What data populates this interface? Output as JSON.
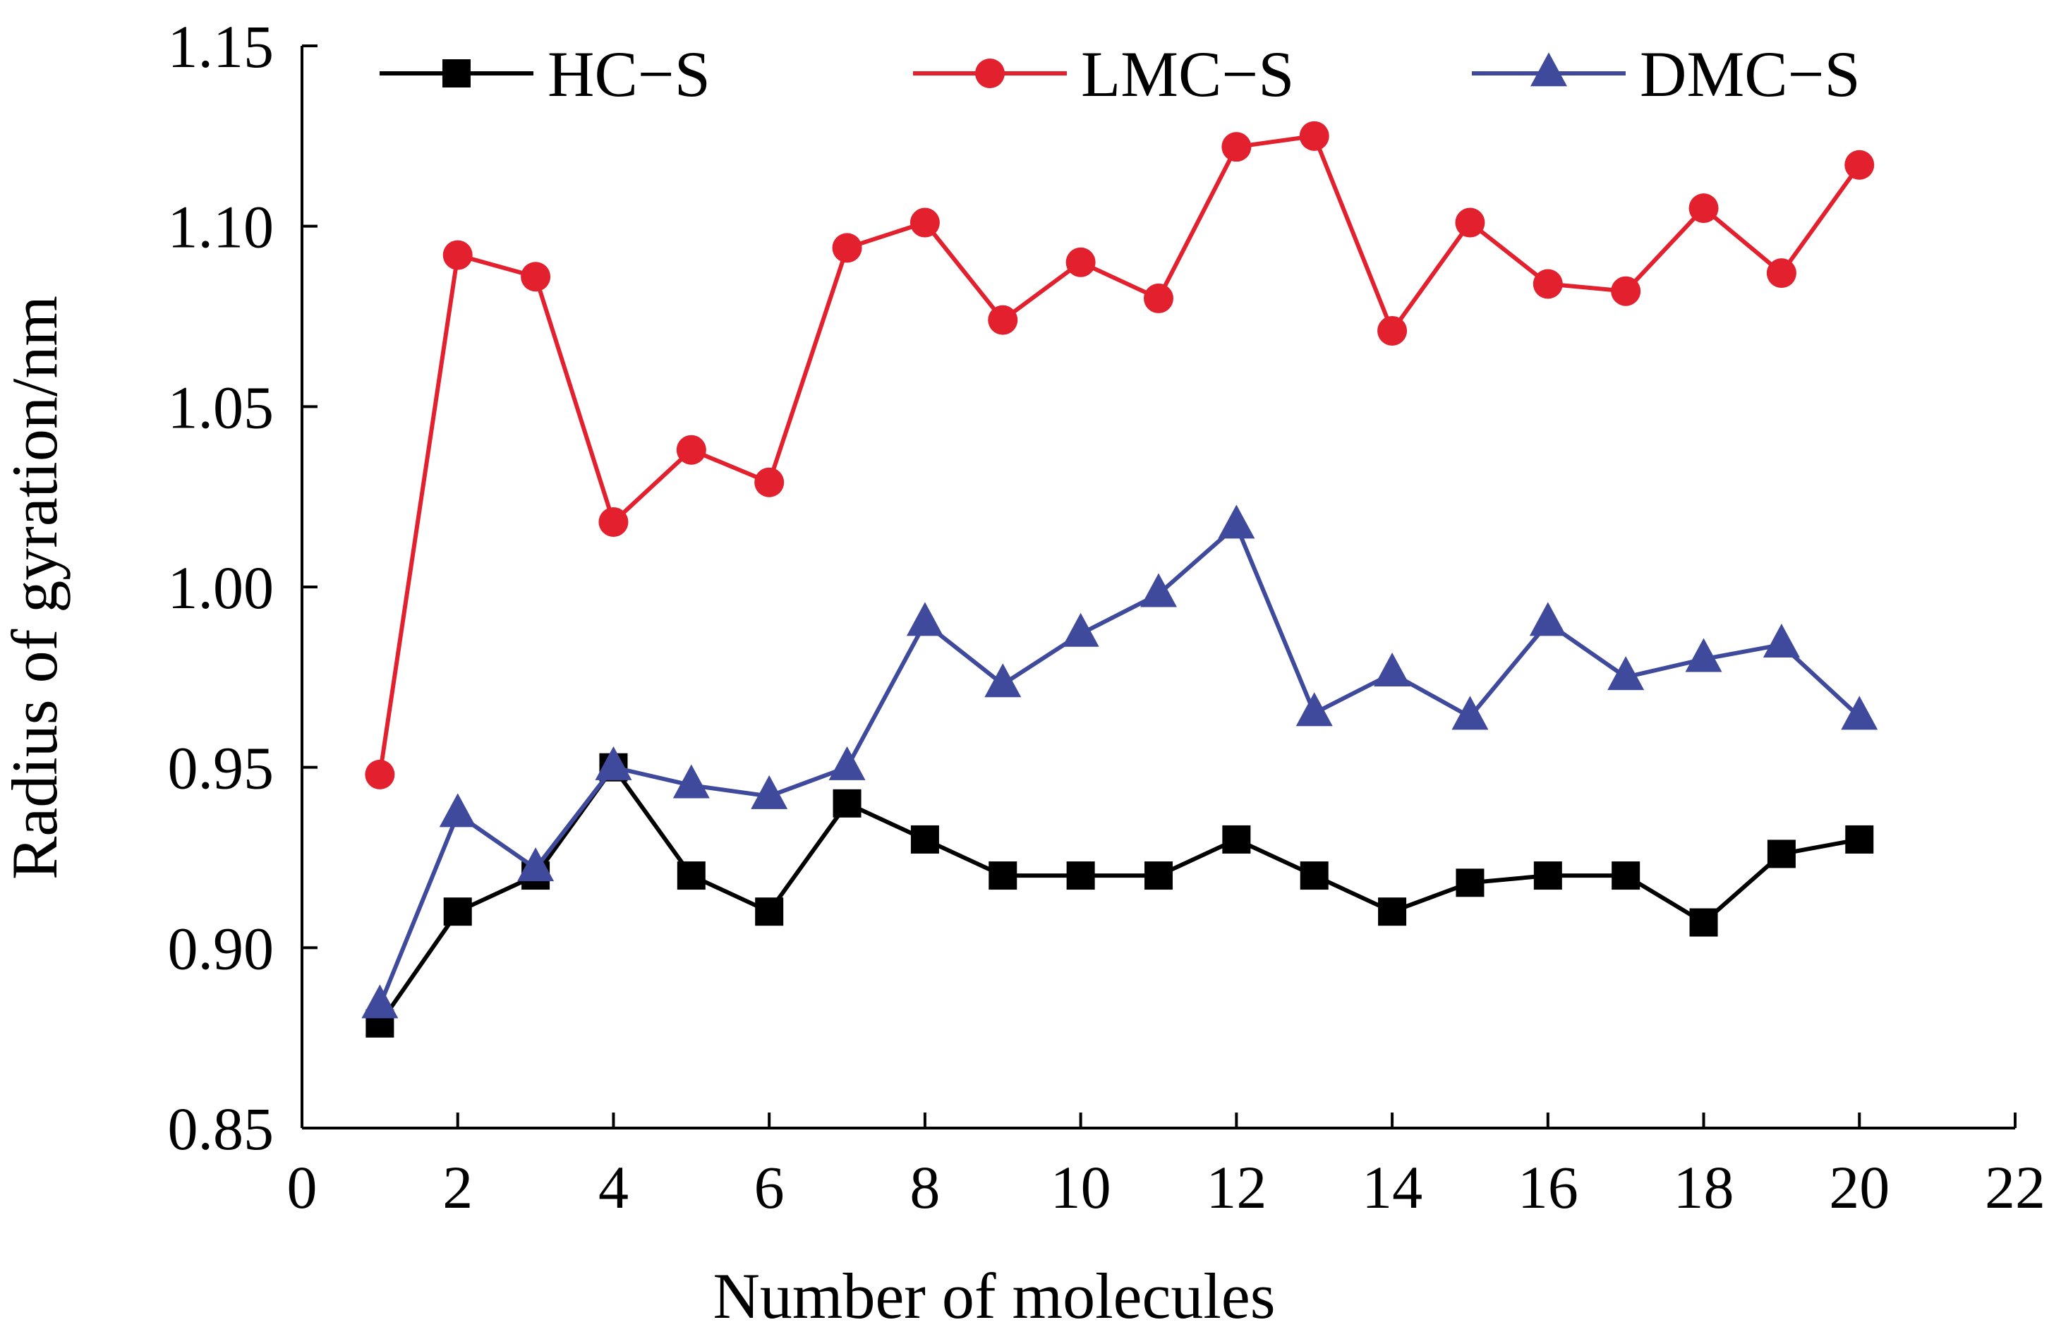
{
  "chart_data": {
    "type": "line",
    "title": "",
    "xlabel": "Number of molecules",
    "ylabel": "Radius of gyration/nm",
    "xlim": [
      0,
      22
    ],
    "ylim": [
      0.85,
      1.15
    ],
    "xticks": [
      "0",
      "2",
      "4",
      "6",
      "8",
      "10",
      "12",
      "14",
      "16",
      "18",
      "20",
      "22"
    ],
    "yticks": [
      "0.85",
      "0.90",
      "0.95",
      "1.00",
      "1.05",
      "1.10",
      "1.15"
    ],
    "grid": false,
    "legend_position": "top",
    "x": [
      1,
      2,
      3,
      4,
      5,
      6,
      7,
      8,
      9,
      10,
      11,
      12,
      13,
      14,
      15,
      16,
      17,
      18,
      19,
      20
    ],
    "series": [
      {
        "name": "HC−S",
        "color": "#000000",
        "marker": "square",
        "values": [
          0.879,
          0.91,
          0.92,
          0.95,
          0.92,
          0.91,
          0.94,
          0.93,
          0.92,
          0.92,
          0.92,
          0.93,
          0.92,
          0.91,
          0.918,
          0.92,
          0.92,
          0.907,
          0.926,
          0.93
        ]
      },
      {
        "name": "LMC−S",
        "color": "#e3202d",
        "marker": "circle",
        "values": [
          0.948,
          1.092,
          1.086,
          1.018,
          1.038,
          1.029,
          1.094,
          1.101,
          1.074,
          1.09,
          1.08,
          1.122,
          1.125,
          1.071,
          1.101,
          1.084,
          1.082,
          1.105,
          1.087,
          1.117
        ]
      },
      {
        "name": "DMC−S",
        "color": "#3f4a9c",
        "marker": "triangle",
        "values": [
          0.884,
          0.937,
          0.922,
          0.95,
          0.945,
          0.942,
          0.95,
          0.99,
          0.973,
          0.987,
          0.998,
          1.017,
          0.965,
          0.976,
          0.964,
          0.99,
          0.975,
          0.98,
          0.984,
          0.964
        ]
      }
    ]
  }
}
